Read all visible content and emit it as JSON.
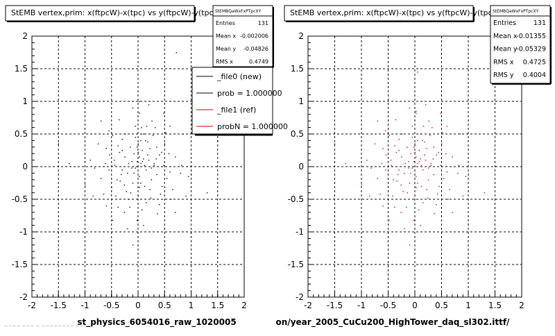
{
  "footer_ghost_text": "~~~~ ~~~ ~ ~~~~~~~~ ~~~",
  "chart_data": [
    {
      "type": "scatter",
      "title": "StEMB  vertex,prim: x(ftpcW)-x(tpc) vs y(ftpcW)-y(tpc)",
      "xlabel": "st_physics_6054016_raw_1020005",
      "ylabel": "",
      "xlim": [
        -2,
        2
      ],
      "ylim": [
        -2,
        2
      ],
      "x_ticks": [
        "-2",
        "-1.5",
        "-1",
        "-0.5",
        "0",
        "0.5",
        "1",
        "1.5",
        "2"
      ],
      "y_ticks": [
        "2",
        "1.5",
        "1",
        "0.5",
        "0",
        "-0.5",
        "-1",
        "-1.5",
        "-2"
      ],
      "grid": true,
      "marker_color": "#000000",
      "stats": {
        "name": "StEMBQaWxFxPTpcXY",
        "rows": [
          {
            "label": "Entries",
            "value": "131"
          },
          {
            "label": "Mean x",
            "value": "-0.002006"
          },
          {
            "label": "Mean y",
            "value": "-0.04826"
          },
          {
            "label": "RMS x",
            "value": "0.4749"
          }
        ]
      },
      "legend": {
        "placement": "top-right",
        "entries": [
          {
            "label": "_file0 (new)",
            "color": "#000000"
          },
          {
            "label": "prob = 1.000000",
            "color": "#000000"
          },
          {
            "label": "_file1 (ref)",
            "color": "#cc0000"
          },
          {
            "label": "probN = 1.000000",
            "color": "#cc0000"
          }
        ]
      },
      "points": [
        [
          0.0,
          0.0
        ],
        [
          0.05,
          0.05
        ],
        [
          -0.05,
          -0.02
        ],
        [
          0.1,
          0.12
        ],
        [
          -0.12,
          0.08
        ],
        [
          0.02,
          -0.15
        ],
        [
          0.15,
          -0.05
        ],
        [
          -0.08,
          0.2
        ],
        [
          0.2,
          0.1
        ],
        [
          -0.2,
          -0.1
        ],
        [
          0.08,
          0.25
        ],
        [
          -0.15,
          0.3
        ],
        [
          0.0,
          0.35
        ],
        [
          0.25,
          -0.2
        ],
        [
          -0.25,
          0.15
        ],
        [
          0.3,
          0.05
        ],
        [
          -0.3,
          -0.05
        ],
        [
          0.12,
          -0.3
        ],
        [
          -0.1,
          -0.25
        ],
        [
          0.05,
          0.4
        ],
        [
          -0.05,
          0.45
        ],
        [
          0.18,
          0.38
        ],
        [
          -0.35,
          0.22
        ],
        [
          0.35,
          -0.12
        ],
        [
          -0.4,
          -0.2
        ],
        [
          0.4,
          0.18
        ],
        [
          0.22,
          -0.35
        ],
        [
          -0.22,
          -0.38
        ],
        [
          0.0,
          -0.45
        ],
        [
          0.1,
          0.5
        ],
        [
          -0.45,
          0.1
        ],
        [
          0.45,
          -0.3
        ],
        [
          -0.5,
          -0.32
        ],
        [
          0.5,
          0.35
        ],
        [
          -0.3,
          0.42
        ],
        [
          0.28,
          0.48
        ],
        [
          -0.55,
          -0.05
        ],
        [
          0.6,
          -0.08
        ],
        [
          -0.6,
          0.28
        ],
        [
          0.58,
          0.2
        ],
        [
          -0.18,
          -0.5
        ],
        [
          0.15,
          -0.55
        ],
        [
          -0.05,
          0.62
        ],
        [
          0.07,
          -0.66
        ],
        [
          0.32,
          0.6
        ],
        [
          0.7,
          0.15
        ],
        [
          -0.7,
          -0.18
        ],
        [
          -0.65,
          -0.42
        ],
        [
          0.4,
          -0.58
        ],
        [
          -0.38,
          -0.62
        ],
        [
          -0.75,
          0.35
        ],
        [
          0.8,
          -0.1
        ],
        [
          0.95,
          -0.15
        ],
        [
          1.0,
          -0.12
        ],
        [
          1.3,
          -0.4
        ],
        [
          -1.5,
          0.35
        ],
        [
          -1.3,
          0.05
        ],
        [
          -0.9,
          0.1
        ],
        [
          -0.85,
          -0.45
        ],
        [
          0.65,
          -0.35
        ],
        [
          -1.0,
          -0.28
        ],
        [
          0.85,
          0.5
        ],
        [
          0.72,
          1.75
        ],
        [
          0.02,
          1.0
        ],
        [
          -0.1,
          -1.2
        ],
        [
          1.5,
          0.4
        ],
        [
          -0.3,
          0.25
        ],
        [
          0.02,
          0.15
        ],
        [
          -0.02,
          0.08
        ],
        [
          0.12,
          0.02
        ],
        [
          -0.12,
          -0.02
        ],
        [
          0.22,
          0.28
        ],
        [
          -0.42,
          -0.45
        ],
        [
          0.48,
          0.02
        ],
        [
          -0.55,
          0.55
        ],
        [
          0.05,
          -0.25
        ],
        [
          0.9,
          -0.45
        ],
        [
          -0.08,
          -0.1
        ],
        [
          0.08,
          0.08
        ],
        [
          0.18,
          0.18
        ],
        [
          -0.18,
          0.05
        ],
        [
          0.25,
          -0.02
        ],
        [
          -0.26,
          -0.28
        ],
        [
          0.35,
          0.3
        ],
        [
          -0.38,
          0.32
        ],
        [
          0.42,
          -0.42
        ],
        [
          -0.48,
          0.48
        ],
        [
          0.52,
          0.52
        ],
        [
          0.62,
          -0.5
        ],
        [
          -0.62,
          0.05
        ],
        [
          0.3,
          0.02
        ],
        [
          -0.32,
          -0.12
        ],
        [
          0.0,
          0.22
        ],
        [
          0.02,
          -0.32
        ],
        [
          -0.02,
          0.3
        ],
        [
          0.14,
          0.4
        ],
        [
          -0.14,
          -0.4
        ],
        [
          0.24,
          -0.48
        ],
        [
          -0.24,
          0.5
        ],
        [
          0.34,
          0.12
        ],
        [
          -0.34,
          -0.22
        ],
        [
          0.44,
          0.22
        ],
        [
          -0.44,
          0.02
        ],
        [
          0.54,
          -0.18
        ],
        [
          -0.54,
          0.18
        ],
        [
          0.16,
          0.62
        ],
        [
          -0.16,
          -0.62
        ],
        [
          0.26,
          0.7
        ],
        [
          -0.26,
          -0.7
        ],
        [
          0.36,
          -0.72
        ],
        [
          -0.36,
          0.72
        ],
        [
          0.02,
          0.82
        ],
        [
          -0.02,
          -0.82
        ],
        [
          0.48,
          0.82
        ],
        [
          -0.48,
          -0.82
        ],
        [
          0.6,
          0.62
        ],
        [
          -0.6,
          -0.6
        ],
        [
          0.7,
          -0.7
        ],
        [
          -0.7,
          0.7
        ],
        [
          0.1,
          -0.9
        ],
        [
          -0.1,
          0.9
        ],
        [
          0.2,
          0.95
        ],
        [
          -0.2,
          -0.95
        ],
        [
          0.82,
          0.02
        ],
        [
          -0.82,
          -0.02
        ],
        [
          0.06,
          0.6
        ]
      ]
    },
    {
      "type": "scatter",
      "title": "StEMB  vertex,prim: x(ftpcW)-x(tpc) vs y(ftpcW)-y(tpc)",
      "xlabel": "on/year_2005_CuCu200_HighTower_daq_sl302.ittf/",
      "ylabel": "",
      "xlim": [
        -2,
        2
      ],
      "ylim": [
        -2,
        2
      ],
      "x_ticks": [
        "-2",
        "-1.5",
        "-1",
        "-0.5",
        "0",
        "0.5",
        "1",
        "1.5",
        "2"
      ],
      "y_ticks": [
        "2",
        "1.5",
        "1",
        "0.5",
        "0",
        "-0.5",
        "-1",
        "-1.5",
        "-2"
      ],
      "grid": true,
      "marker_color": "#cc0000",
      "stats": {
        "name": "StEMBQaWxFxPTpcXY",
        "rows": [
          {
            "label": "Entries",
            "value": "131"
          },
          {
            "label": "Mean x",
            "value": "-0.01355"
          },
          {
            "label": "Mean y",
            "value": "-0.05329"
          },
          {
            "label": "RMS x",
            "value": "0.4725"
          },
          {
            "label": "RMS y",
            "value": "0.4004"
          }
        ]
      },
      "points": [
        [
          0.0,
          0.0
        ],
        [
          0.05,
          0.05
        ],
        [
          -0.05,
          -0.02
        ],
        [
          0.1,
          0.12
        ],
        [
          -0.12,
          0.08
        ],
        [
          0.02,
          -0.15
        ],
        [
          0.15,
          -0.05
        ],
        [
          -0.08,
          0.2
        ],
        [
          0.2,
          0.1
        ],
        [
          -0.2,
          -0.1
        ],
        [
          0.08,
          0.25
        ],
        [
          -0.15,
          0.3
        ],
        [
          0.0,
          0.35
        ],
        [
          0.25,
          -0.2
        ],
        [
          -0.25,
          0.15
        ],
        [
          0.3,
          0.05
        ],
        [
          -0.3,
          -0.05
        ],
        [
          0.12,
          -0.3
        ],
        [
          -0.1,
          -0.25
        ],
        [
          0.05,
          0.4
        ],
        [
          -0.05,
          0.45
        ],
        [
          0.18,
          0.38
        ],
        [
          -0.35,
          0.22
        ],
        [
          0.35,
          -0.12
        ],
        [
          -0.4,
          -0.2
        ],
        [
          0.4,
          0.18
        ],
        [
          0.22,
          -0.35
        ],
        [
          -0.22,
          -0.38
        ],
        [
          0.0,
          -0.45
        ],
        [
          0.1,
          0.5
        ],
        [
          -0.45,
          0.1
        ],
        [
          0.45,
          -0.3
        ],
        [
          -0.5,
          -0.32
        ],
        [
          0.5,
          0.35
        ],
        [
          -0.3,
          0.42
        ],
        [
          0.28,
          0.48
        ],
        [
          -0.55,
          -0.05
        ],
        [
          0.6,
          -0.08
        ],
        [
          -0.6,
          0.28
        ],
        [
          0.58,
          0.2
        ],
        [
          -0.18,
          -0.5
        ],
        [
          0.15,
          -0.55
        ],
        [
          -0.05,
          0.62
        ],
        [
          0.07,
          -0.66
        ],
        [
          0.32,
          0.6
        ],
        [
          0.7,
          0.15
        ],
        [
          -0.7,
          -0.18
        ],
        [
          -0.65,
          -0.42
        ],
        [
          0.4,
          -0.58
        ],
        [
          -0.38,
          -0.62
        ],
        [
          -0.75,
          0.35
        ],
        [
          0.8,
          -0.1
        ],
        [
          0.95,
          -0.15
        ],
        [
          1.0,
          -0.12
        ],
        [
          1.3,
          -0.4
        ],
        [
          -1.5,
          0.35
        ],
        [
          -1.3,
          0.05
        ],
        [
          -0.9,
          0.1
        ],
        [
          -0.85,
          -0.45
        ],
        [
          0.65,
          -0.35
        ],
        [
          -1.0,
          -0.28
        ],
        [
          0.85,
          0.5
        ],
        [
          0.05,
          1.45
        ],
        [
          0.02,
          0.85
        ],
        [
          -0.1,
          -1.2
        ],
        [
          1.5,
          0.4
        ],
        [
          -0.3,
          0.25
        ],
        [
          0.02,
          0.15
        ],
        [
          -0.02,
          0.08
        ],
        [
          0.12,
          0.02
        ],
        [
          -0.12,
          -0.02
        ],
        [
          0.22,
          0.28
        ],
        [
          -0.42,
          -0.45
        ],
        [
          0.48,
          0.02
        ],
        [
          -0.55,
          0.55
        ],
        [
          0.05,
          -0.25
        ],
        [
          0.9,
          -0.45
        ],
        [
          -0.08,
          -0.1
        ],
        [
          0.08,
          0.08
        ],
        [
          0.18,
          0.18
        ],
        [
          -0.18,
          0.05
        ],
        [
          0.25,
          -0.02
        ],
        [
          -0.26,
          -0.28
        ],
        [
          0.35,
          0.3
        ],
        [
          -0.38,
          0.32
        ],
        [
          0.42,
          -0.42
        ],
        [
          -0.48,
          0.48
        ],
        [
          0.52,
          0.52
        ],
        [
          0.62,
          -0.5
        ],
        [
          -0.62,
          0.05
        ],
        [
          0.3,
          0.02
        ],
        [
          -0.32,
          -0.12
        ],
        [
          0.0,
          0.22
        ],
        [
          0.02,
          -0.32
        ],
        [
          -0.02,
          0.3
        ],
        [
          0.14,
          0.4
        ],
        [
          -0.14,
          -0.4
        ],
        [
          0.24,
          -0.48
        ],
        [
          -0.24,
          0.5
        ],
        [
          0.34,
          0.12
        ],
        [
          -0.34,
          -0.22
        ],
        [
          0.44,
          0.22
        ],
        [
          -0.44,
          0.02
        ],
        [
          0.54,
          -0.18
        ],
        [
          -0.54,
          0.18
        ],
        [
          0.16,
          0.62
        ],
        [
          -0.16,
          -0.62
        ],
        [
          0.26,
          0.7
        ],
        [
          -0.26,
          -0.7
        ],
        [
          0.36,
          -0.72
        ],
        [
          -0.36,
          0.72
        ],
        [
          0.02,
          0.82
        ],
        [
          -0.02,
          -0.82
        ],
        [
          0.48,
          0.82
        ],
        [
          -0.48,
          -0.82
        ],
        [
          0.6,
          0.62
        ],
        [
          -0.6,
          -0.6
        ],
        [
          0.7,
          -0.7
        ],
        [
          -0.7,
          0.7
        ],
        [
          0.1,
          -0.9
        ],
        [
          -0.1,
          0.9
        ],
        [
          0.2,
          0.95
        ],
        [
          -0.2,
          -0.95
        ],
        [
          0.82,
          0.02
        ],
        [
          -0.82,
          -0.02
        ],
        [
          -0.8,
          0.5
        ]
      ]
    }
  ]
}
